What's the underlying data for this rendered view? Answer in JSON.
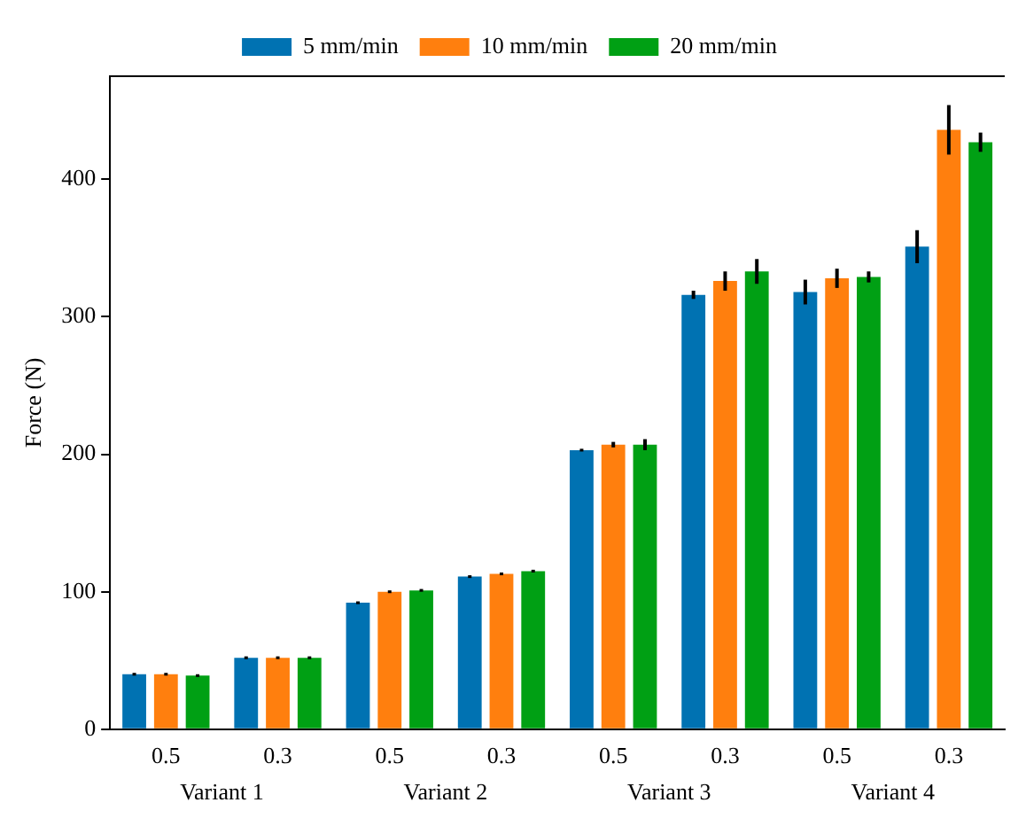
{
  "chart_data": {
    "type": "bar",
    "ylabel": "Force (N)",
    "categories": [
      "0.5",
      "0.3",
      "0.5",
      "0.3",
      "0.5",
      "0.3",
      "0.5",
      "0.3"
    ],
    "series": [
      {
        "name": "5 mm/min",
        "color": "#0072b2",
        "values": [
          40,
          52,
          92,
          111,
          203,
          316,
          318,
          351
        ],
        "errors": [
          1,
          1,
          1,
          1,
          1,
          3,
          9,
          12
        ]
      },
      {
        "name": "10 mm/min",
        "color": "#ff7f0e",
        "values": [
          40,
          52,
          100,
          113,
          207,
          326,
          328,
          436
        ],
        "errors": [
          1,
          1,
          1,
          1,
          2,
          7,
          7,
          18
        ]
      },
      {
        "name": "20 mm/min",
        "color": "#00a014",
        "values": [
          39,
          52,
          101,
          115,
          207,
          333,
          329,
          427
        ],
        "errors": [
          1,
          1,
          1,
          1,
          4,
          9,
          4,
          7
        ]
      }
    ],
    "annotations": [
      "Variant 1",
      "Variant 2",
      "Variant 3",
      "Variant 4"
    ],
    "ylim": [
      0,
      475
    ],
    "yticks": [
      0,
      100,
      200,
      300,
      400
    ],
    "grid": false,
    "legend": "top"
  }
}
